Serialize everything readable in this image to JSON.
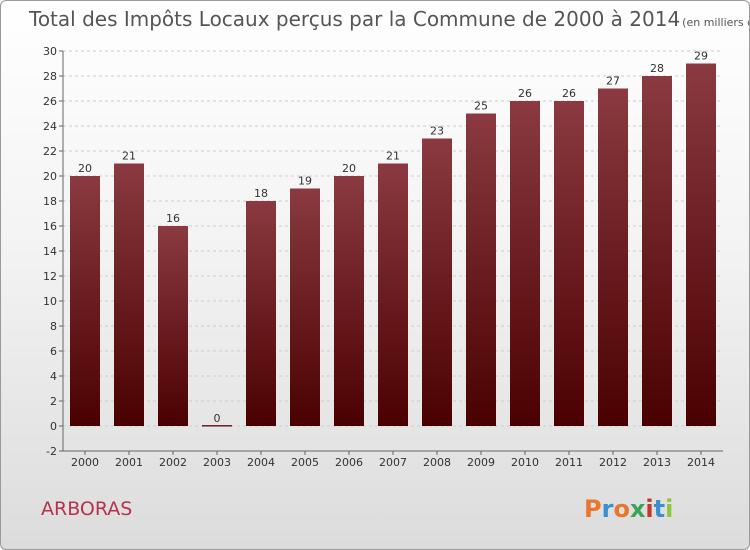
{
  "title": "Total des Impôts Locaux perçus par la Commune de 2000 à 2014",
  "unit_label": "(en milliers d'€)",
  "commune": "ARBORAS",
  "logo": {
    "letters": [
      "P",
      "r",
      "o",
      "x",
      "i",
      "t",
      "i"
    ],
    "colors": [
      "#e8762c",
      "#3a8fd0",
      "#e8762c",
      "#3aa655",
      "#c0392b",
      "#3a8fd0",
      "#8dc63f"
    ]
  },
  "colors": {
    "bar_top": "#8a3a40",
    "bar_bottom": "#4a0000",
    "grid": "#cccccc"
  },
  "chart_data": {
    "type": "bar",
    "categories": [
      "2000",
      "2001",
      "2002",
      "2003",
      "2004",
      "2005",
      "2006",
      "2007",
      "2008",
      "2009",
      "2010",
      "2011",
      "2012",
      "2013",
      "2014"
    ],
    "values": [
      20,
      21,
      16,
      0,
      18,
      19,
      20,
      21,
      23,
      25,
      26,
      26,
      27,
      28,
      29
    ],
    "ylim": [
      -2,
      30
    ],
    "yticks": [
      -2,
      0,
      2,
      4,
      6,
      8,
      10,
      12,
      14,
      16,
      18,
      20,
      22,
      24,
      26,
      28,
      30
    ],
    "grid": true
  }
}
